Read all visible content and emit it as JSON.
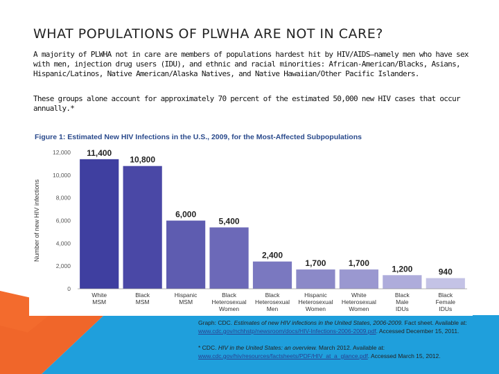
{
  "slide": {
    "title": "WHAT POPULATIONS OF PLWHA ARE NOT IN CARE?",
    "para1": "A majority of PLWHA not in care are members of populations hardest hit by HIV/AIDS—namely men who have sex with men, injection drug users (IDU), and ethnic and racial minorities: African-American/Blacks, Asians, Hispanic/Latinos, Native American/Alaska Natives, and Native Hawaiian/Other Pacific Islanders.",
    "para2": "These groups alone account for approximately 70 percent of the estimated 50,000 new HIV cases that occur annually.*"
  },
  "sources": {
    "graph_prefix": "Graph: CDC. ",
    "graph_title": "Estimates of new HIV infections in the United States, 2006-2009.",
    "graph_suffix": " Fact sheet. Available at: ",
    "graph_link": "www.cdc.gov/nchhstp/newsroom/docs/HIV-Infections-2006-2009.pdf",
    "graph_accessed": ". Accessed December 15, 2011.",
    "note_prefix": "* CDC. ",
    "note_title": "HIV in the United States: an overview.",
    "note_suffix": " March 2012. Available at: ",
    "note_link": "www.cdc.gov/hiv/resources/factsheets/PDF/HIV_at_a_glance.pdf",
    "note_accessed": ". Accessed March 15, 2012."
  },
  "colors": {
    "orange": "#f0662a",
    "blue": "#1f9fdc",
    "figure_title": "#2a4a8c"
  },
  "chart_data": {
    "type": "bar",
    "title": "Figure 1: Estimated New HIV Infections in the U.S., 2009, for the Most-Affected Subpopulations",
    "xlabel": "",
    "ylabel": "Number of new HIV infections",
    "ylim": [
      0,
      12000
    ],
    "yticks": [
      "0",
      "2,000",
      "4,000",
      "6,000",
      "8,000",
      "10,000",
      "12,000"
    ],
    "grid": false,
    "categories": [
      [
        "White",
        "MSM"
      ],
      [
        "Black",
        "MSM"
      ],
      [
        "Hispanic",
        "MSM"
      ],
      [
        "Black",
        "Heterosexual",
        "Women"
      ],
      [
        "Black",
        "Heterosexual",
        "Men"
      ],
      [
        "Hispanic",
        "Heterosexual",
        "Women"
      ],
      [
        "White",
        "Heterosexual",
        "Women"
      ],
      [
        "Black",
        "Male",
        "IDUs"
      ],
      [
        "Black",
        "Female",
        "IDUs"
      ]
    ],
    "values": [
      11400,
      10800,
      6000,
      5400,
      2400,
      1700,
      1700,
      1200,
      940
    ],
    "labels": [
      "11,400",
      "10,800",
      "6,000",
      "5,400",
      "2,400",
      "1,700",
      "1,700",
      "1,200",
      "940"
    ],
    "bar_colors": [
      "#3f3fa0",
      "#4a48a6",
      "#5e5cb0",
      "#6c69b8",
      "#7a78c0",
      "#8b89c8",
      "#9a98d0",
      "#aeacdb",
      "#c4c3e6"
    ]
  }
}
